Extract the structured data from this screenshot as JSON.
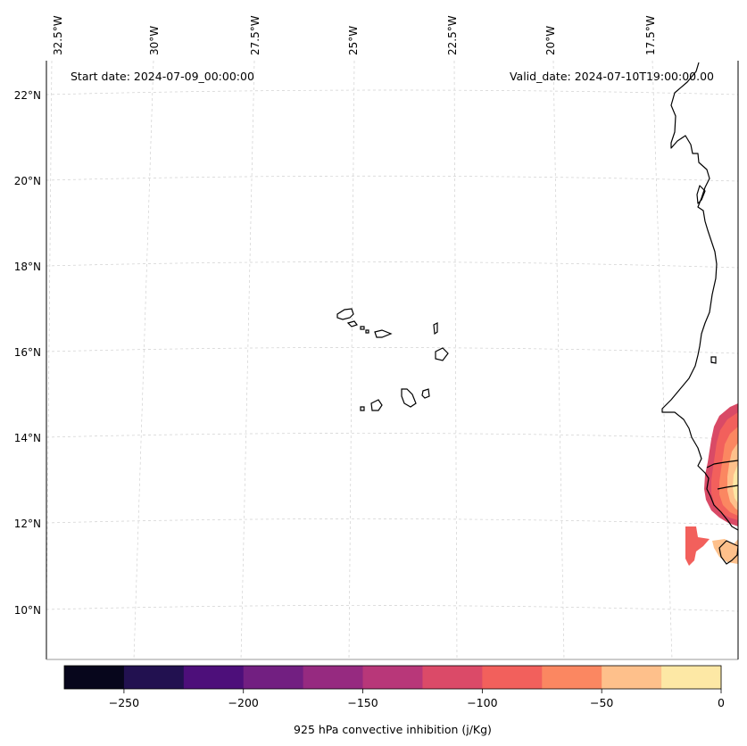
{
  "annotations": {
    "start_date": "Start date: 2024-07-09_00:00:00",
    "valid_date": "Valid_date: 2024-07-10T19:00:00.00"
  },
  "longitude_labels": [
    "32.5°W",
    "30°W",
    "27.5°W",
    "25°W",
    "22.5°W",
    "20°W",
    "17.5°W"
  ],
  "latitude_labels": [
    "22°N",
    "20°N",
    "18°N",
    "16°N",
    "14°N",
    "12°N",
    "10°N"
  ],
  "colorbar": {
    "title": "925 hPa convective inhibition (j/Kg)",
    "tick_labels": [
      "−250",
      "−200",
      "−150",
      "−100",
      "−50",
      "0"
    ],
    "tick_values": [
      -250,
      -200,
      -150,
      -100,
      -50,
      0
    ],
    "range": [
      -275,
      0
    ],
    "bin_edges": [
      -275,
      -250,
      -225,
      -200,
      -175,
      -150,
      -125,
      -100,
      -75,
      -50,
      -25,
      0
    ],
    "colors": [
      "#07061c",
      "#221150",
      "#4d0f7a",
      "#721f81",
      "#962a80",
      "#b83779",
      "#db4a68",
      "#f2605c",
      "#fb8761",
      "#fec08b",
      "#fde8a5"
    ]
  },
  "map": {
    "colormap": "magma",
    "gridlines": true,
    "coastlines": true
  }
}
